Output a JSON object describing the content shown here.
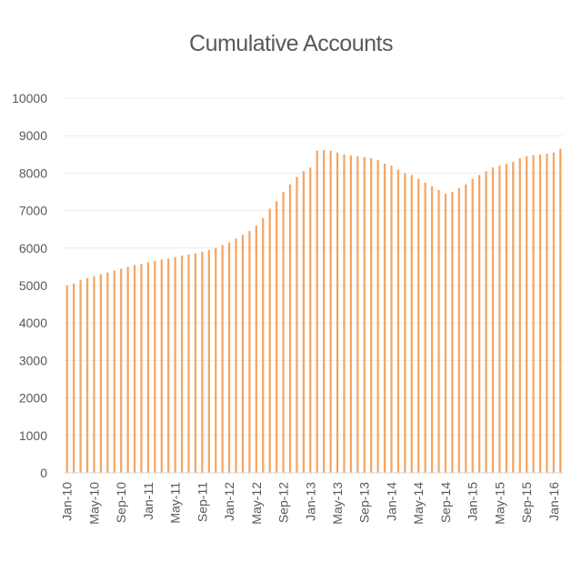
{
  "chart_data": {
    "type": "bar",
    "title": "Cumulative Accounts",
    "xlabel": "",
    "ylabel": "",
    "ylim": [
      0,
      10000
    ],
    "y_ticks": [
      0,
      1000,
      2000,
      3000,
      4000,
      5000,
      6000,
      7000,
      8000,
      9000,
      10000
    ],
    "x_tick_labels": [
      "Jan-10",
      "May-10",
      "Sep-10",
      "Jan-11",
      "May-11",
      "Sep-11",
      "Jan-12",
      "May-12",
      "Sep-12",
      "Jan-13",
      "May-13",
      "Sep-13",
      "Jan-14",
      "May-14",
      "Sep-14",
      "Jan-15",
      "May-15",
      "Sep-15",
      "Jan-16"
    ],
    "categories": [
      "Jan-10",
      "Feb-10",
      "Mar-10",
      "Apr-10",
      "May-10",
      "Jun-10",
      "Jul-10",
      "Aug-10",
      "Sep-10",
      "Oct-10",
      "Nov-10",
      "Dec-10",
      "Jan-11",
      "Feb-11",
      "Mar-11",
      "Apr-11",
      "May-11",
      "Jun-11",
      "Jul-11",
      "Aug-11",
      "Sep-11",
      "Oct-11",
      "Nov-11",
      "Dec-11",
      "Jan-12",
      "Feb-12",
      "Mar-12",
      "Apr-12",
      "May-12",
      "Jun-12",
      "Jul-12",
      "Aug-12",
      "Sep-12",
      "Oct-12",
      "Nov-12",
      "Dec-12",
      "Jan-13",
      "Feb-13",
      "Mar-13",
      "Apr-13",
      "May-13",
      "Jun-13",
      "Jul-13",
      "Aug-13",
      "Sep-13",
      "Oct-13",
      "Nov-13",
      "Dec-13",
      "Jan-14",
      "Feb-14",
      "Mar-14",
      "Apr-14",
      "May-14",
      "Jun-14",
      "Jul-14",
      "Aug-14",
      "Sep-14",
      "Oct-14",
      "Nov-14",
      "Dec-14",
      "Jan-15",
      "Feb-15",
      "Mar-15",
      "Apr-15",
      "May-15",
      "Jun-15",
      "Jul-15",
      "Aug-15",
      "Sep-15",
      "Oct-15",
      "Nov-15",
      "Dec-15",
      "Jan-16",
      "Feb-16"
    ],
    "values": [
      5000,
      5050,
      5150,
      5200,
      5250,
      5300,
      5350,
      5400,
      5450,
      5500,
      5550,
      5580,
      5620,
      5660,
      5700,
      5720,
      5760,
      5800,
      5830,
      5860,
      5900,
      5950,
      6000,
      6080,
      6150,
      6250,
      6350,
      6450,
      6600,
      6800,
      7050,
      7250,
      7500,
      7700,
      7900,
      8050,
      8150,
      8600,
      8620,
      8600,
      8550,
      8500,
      8470,
      8450,
      8430,
      8400,
      8350,
      8250,
      8200,
      8100,
      8000,
      7950,
      7850,
      7750,
      7650,
      7550,
      7450,
      7500,
      7600,
      7700,
      7850,
      7950,
      8050,
      8150,
      8200,
      8250,
      8300,
      8400,
      8450,
      8480,
      8500,
      8520,
      8550,
      8650
    ],
    "bar_color": "#f4a460",
    "grid": true,
    "legend": "none"
  }
}
